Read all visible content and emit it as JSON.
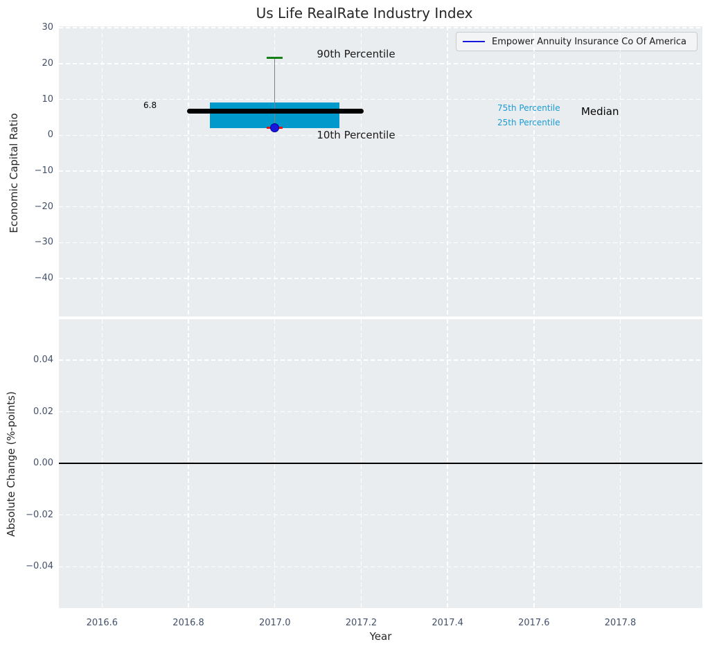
{
  "title": "Us Life RealRate Industry Index",
  "legend": {
    "label": "Empower Annuity Insurance Co Of America",
    "line_color": "#1717dd"
  },
  "colors": {
    "plot_bg": "#e9edef",
    "grid": "#ffffff",
    "box_fill": "#0099cc",
    "median_line": "#000000",
    "whisker": "#7f7f7f",
    "cap_90th": "#128012",
    "cap_10th": "#e51212",
    "company_dot": "#1717dd",
    "tick_label": "#42506a",
    "percentile_text": "#1a9cd4",
    "zero_line": "#000000"
  },
  "chart_data": [
    {
      "type": "box",
      "title": "Us Life RealRate Industry Index",
      "ylabel": "Economic Capital Ratio",
      "xlim": [
        2016.5,
        2017.99
      ],
      "ylim": [
        -50.6,
        30.4
      ],
      "grid": true,
      "legend_position": "upper right",
      "x_ticks": [
        {
          "v": 2016.6,
          "label": "2016.6"
        },
        {
          "v": 2016.8,
          "label": "2016.8"
        },
        {
          "v": 2017.0,
          "label": "2017.0"
        },
        {
          "v": 2017.2,
          "label": "2017.2"
        },
        {
          "v": 2017.4,
          "label": "2017.4"
        },
        {
          "v": 2017.6,
          "label": "2017.6"
        },
        {
          "v": 2017.8,
          "label": "2017.8"
        }
      ],
      "y_ticks": [
        {
          "v": 30,
          "label": "30"
        },
        {
          "v": 20,
          "label": "20"
        },
        {
          "v": 10,
          "label": "10"
        },
        {
          "v": 0,
          "label": "0"
        },
        {
          "v": -10,
          "label": "−10"
        },
        {
          "v": -20,
          "label": "−20"
        },
        {
          "v": -30,
          "label": "−30"
        },
        {
          "v": -40,
          "label": "−40"
        }
      ],
      "series": {
        "x": 2017.0,
        "p90": 21.7,
        "q75": 9.1,
        "median": 6.8,
        "q25": 1.9,
        "p10": 2.1,
        "company_value": 2.1,
        "box_span": [
          2016.85,
          2017.15
        ],
        "median_span": [
          2016.797,
          2017.206
        ],
        "cap_halfwidth": 0.0185
      },
      "annotations": [
        {
          "text": "6.8",
          "x": 2016.711,
          "y": 8.3,
          "color": "#000000",
          "size": 12
        },
        {
          "text": "90th Percentile",
          "x": 2017.188,
          "y": 22.8,
          "color": "#1a1a1a",
          "size": 15
        },
        {
          "text": "10th Percentile",
          "x": 2017.188,
          "y": 0.2,
          "color": "#1a1a1a",
          "size": 15
        },
        {
          "text": "75th Percentile",
          "x": 2017.588,
          "y": 7.5,
          "color": "#1a9cd4",
          "size": 12
        },
        {
          "text": "25th Percentile",
          "x": 2017.588,
          "y": 3.5,
          "color": "#1a9cd4",
          "size": 12
        },
        {
          "text": "Median",
          "x": 2017.753,
          "y": 6.6,
          "color": "#000000",
          "size": 15
        }
      ]
    },
    {
      "type": "line",
      "xlabel": "Year",
      "ylabel": "Absolute Change (%-points)",
      "xlim": [
        2016.5,
        2017.99
      ],
      "ylim": [
        -0.056,
        0.0558
      ],
      "grid": true,
      "x_ticks": [
        {
          "v": 2016.6,
          "label": "2016.6"
        },
        {
          "v": 2016.8,
          "label": "2016.8"
        },
        {
          "v": 2017.0,
          "label": "2017.0"
        },
        {
          "v": 2017.2,
          "label": "2017.2"
        },
        {
          "v": 2017.4,
          "label": "2017.4"
        },
        {
          "v": 2017.6,
          "label": "2017.6"
        },
        {
          "v": 2017.8,
          "label": "2017.8"
        }
      ],
      "y_ticks": [
        {
          "v": 0.04,
          "label": "0.04"
        },
        {
          "v": 0.02,
          "label": "0.02"
        },
        {
          "v": 0.0,
          "label": "0.00"
        },
        {
          "v": -0.02,
          "label": "−0.02"
        },
        {
          "v": -0.04,
          "label": "−0.04"
        }
      ],
      "hline": 0.0
    }
  ]
}
